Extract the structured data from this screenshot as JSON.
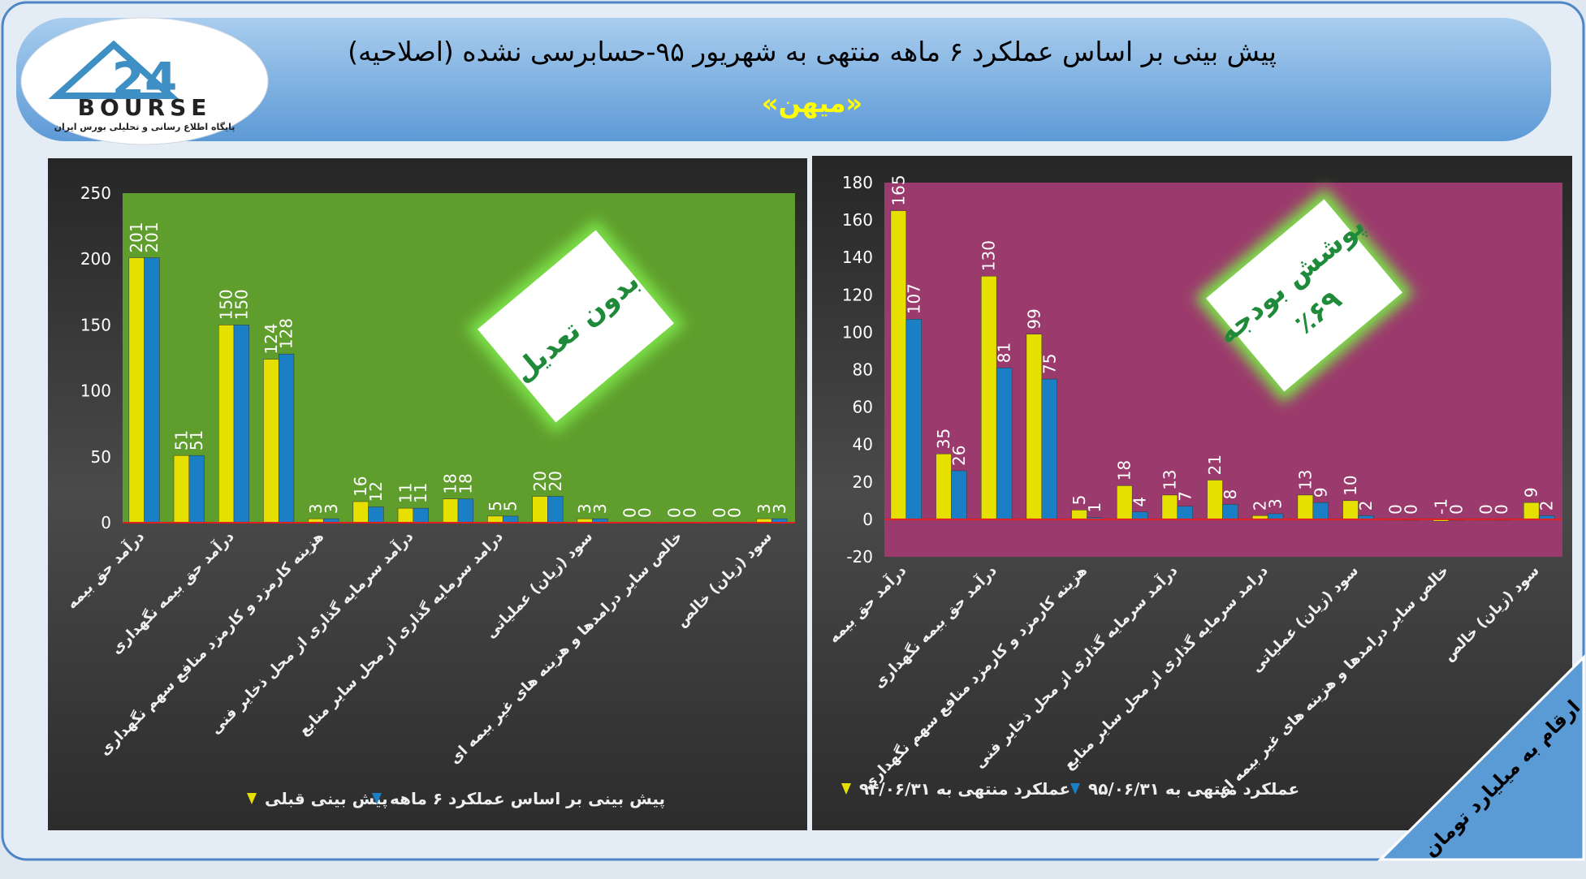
{
  "header": {
    "title": "پیش بینی بر اساس عملکرد ۶ ماهه منتهی به شهریور ۹۵-حسابرسی نشده (اصلاحیه)",
    "subtitle": "«میهن»",
    "logo": "24",
    "logo_word": "BOURSE",
    "logo_caption": "پایگاه اطلاع رسانی و تحلیلی بورس ایران"
  },
  "note": "ارقام به میلیارد تومان",
  "chart_data": [
    {
      "type": "bar",
      "badge": [
        "بدون تعدیل"
      ],
      "categories": [
        "درآمد حق بیمه",
        null,
        "درآمد حق بیمه نگهداری",
        null,
        "هزینه کارمزد و کارمزد منافع سهم نگهداری",
        null,
        "درآمد سرمایه گذاری از محل ذخایر فنی",
        null,
        "درامد سرمایه گذاری از محل سایر منابع",
        null,
        "سود (زیان) عملیاتی",
        null,
        "خالص سایر درامدها و هزینه های غیر بیمه ای",
        null,
        "سود (زیان) خالص"
      ],
      "series": [
        {
          "name": "پیش بینی قبلی",
          "color": "#e6e000",
          "values": [
            201,
            51,
            150,
            124,
            3,
            16,
            11,
            18,
            5,
            20,
            3,
            0,
            0,
            0,
            3
          ]
        },
        {
          "name": "پیش بینی بر اساس عملکرد ۶ ماهه",
          "color": "#1a7fc4",
          "values": [
            201,
            51,
            150,
            128,
            3,
            12,
            11,
            18,
            5,
            20,
            3,
            0,
            0,
            0,
            3
          ]
        }
      ],
      "ylim": [
        0,
        250
      ],
      "yticks": [
        0,
        50,
        100,
        150,
        200,
        250
      ],
      "grid": false,
      "plot_color": "#5f9e2c"
    },
    {
      "type": "bar",
      "badge": [
        "پوشش بودجه",
        "٪۶۹"
      ],
      "categories": [
        "درآمد حق بیمه",
        null,
        "درآمد حق بیمه نگهداری",
        null,
        "هزینه کارمزد و کارمزد منافع سهم نگهداری",
        null,
        "درآمد سرمایه گذاری از محل ذخایر فنی",
        null,
        "درامد سرمایه گذاری از محل سایر منابع",
        null,
        "سود (زیان) عملیاتی",
        null,
        "خالص سایر درامدها و هزینه های غیر بیمه ای",
        null,
        "سود (زیان) خالص"
      ],
      "series": [
        {
          "name": "عملکرد منتهی به ۹۴/۰۶/۳۱",
          "color": "#e6e000",
          "values": [
            165,
            35,
            130,
            99,
            5,
            18,
            13,
            21,
            2,
            13,
            10,
            0,
            -1,
            0,
            9
          ]
        },
        {
          "name": "عملکرد منتهی به ۹۵/۰۶/۳۱",
          "color": "#1a7fc4",
          "values": [
            107,
            26,
            81,
            75,
            1,
            4,
            7,
            8,
            3,
            9,
            2,
            0,
            0,
            0,
            2
          ]
        }
      ],
      "ylim": [
        -20,
        180
      ],
      "yticks": [
        -20,
        0,
        20,
        40,
        60,
        80,
        100,
        120,
        140,
        160,
        180
      ],
      "grid": false,
      "plot_color": "#9b3a6c"
    }
  ]
}
